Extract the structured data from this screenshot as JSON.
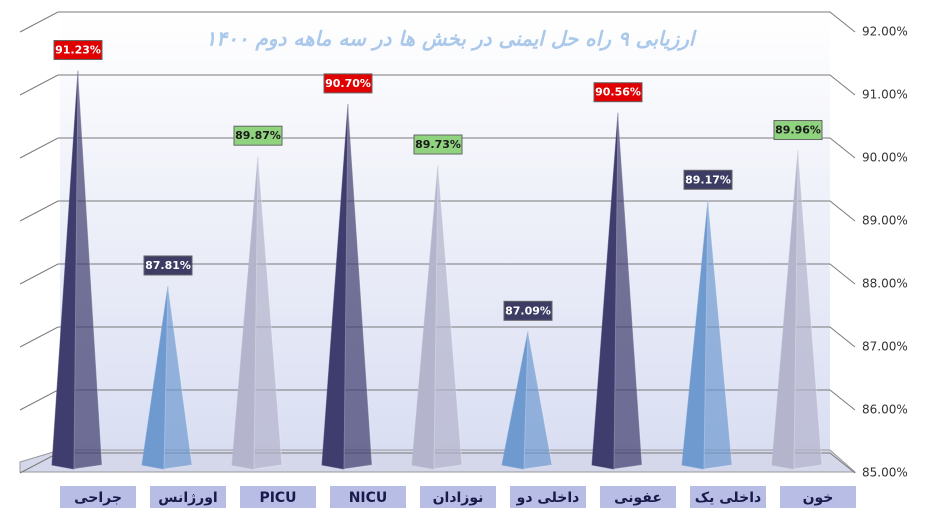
{
  "chart_data": {
    "type": "pyramid",
    "title": "ارزیابی ۹ راه حل ایمنی در بخش ها  در سه ماهه دوم ۱۴۰۰",
    "categories": [
      "جراحی",
      "اورژانس",
      "PICU",
      "NICU",
      "نوزادان",
      "داخلی دو",
      "عفونی",
      "داخلی یک",
      "خون"
    ],
    "values": [
      91.23,
      87.81,
      89.87,
      90.7,
      89.73,
      87.09,
      90.56,
      89.17,
      89.96
    ],
    "value_labels": [
      "91.23%",
      "87.81%",
      "89.87%",
      "90.70%",
      "89.73%",
      "87.09%",
      "90.56%",
      "89.17%",
      "89.96%"
    ],
    "colors": [
      "#3f3c6e",
      "#6f9ad0",
      "#b4b4cc",
      "#3f3c6e",
      "#b4b4cc",
      "#6f9ad0",
      "#3f3c6e",
      "#6f9ad0",
      "#b4b4cc"
    ],
    "label_colors": [
      "#e00000",
      "#3c3c64",
      "#8fd37f",
      "#e00000",
      "#8fd37f",
      "#3c3c64",
      "#e00000",
      "#3c3c64",
      "#8fd37f"
    ],
    "ylim": [
      85,
      92
    ],
    "yticks": [
      {
        "value": 85,
        "label": "85.00%"
      },
      {
        "value": 86,
        "label": "86.00%"
      },
      {
        "value": 87,
        "label": "87.00%"
      },
      {
        "value": 88,
        "label": "88.00%"
      },
      {
        "value": 89,
        "label": "89.00%"
      },
      {
        "value": 90,
        "label": "90.00%"
      },
      {
        "value": 91,
        "label": "91.00%"
      },
      {
        "value": 92,
        "label": "92.00%"
      }
    ],
    "grid": true
  }
}
